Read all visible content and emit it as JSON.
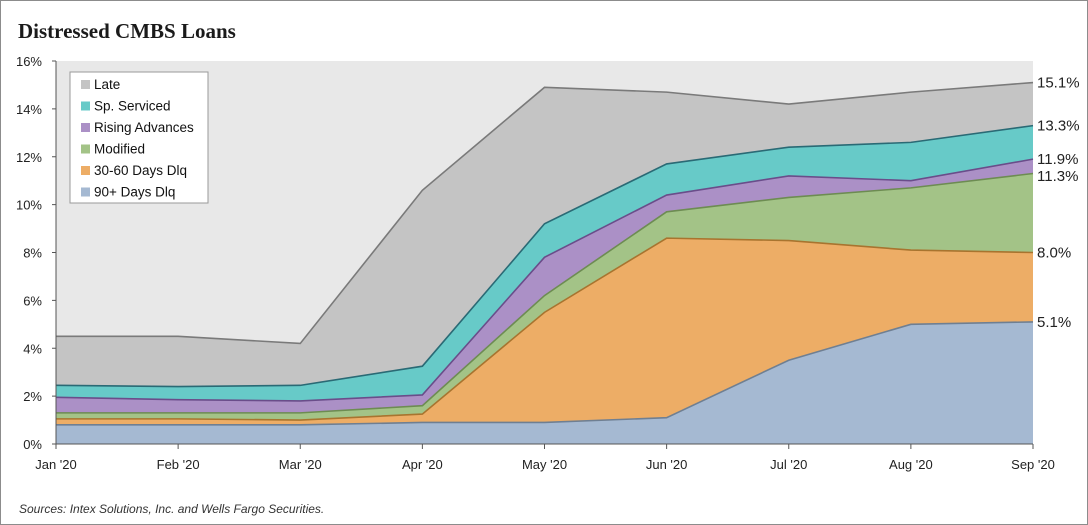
{
  "chart_data": {
    "type": "area",
    "title": "Distressed CMBS Loans",
    "source": "Sources: Intex Solutions, Inc. and Wells Fargo Securities.",
    "categories": [
      "Jan '20",
      "Feb '20",
      "Mar '20",
      "Apr '20",
      "May '20",
      "Jun '20",
      "Jul '20",
      "Aug '20",
      "Sep '20"
    ],
    "ylim": [
      0,
      16
    ],
    "yticks": [
      "0%",
      "2%",
      "4%",
      "6%",
      "8%",
      "10%",
      "12%",
      "14%",
      "16%"
    ],
    "stacked_cumulative": true,
    "legend_position": "top-left",
    "background": "#e8e8e8",
    "series": [
      {
        "name": "90+ Days Dlq",
        "color": "#a5b9d2",
        "line": "#6f7f92",
        "values": [
          0.8,
          0.8,
          0.8,
          0.9,
          0.9,
          1.1,
          3.5,
          5.0,
          5.1
        ]
      },
      {
        "name": "30-60 Days Dlq",
        "color": "#edad66",
        "line": "#a8742f",
        "values": [
          1.05,
          1.05,
          1.0,
          1.25,
          5.5,
          8.6,
          8.5,
          8.1,
          8.0
        ]
      },
      {
        "name": "Modified",
        "color": "#a3c387",
        "line": "#6d8c52",
        "values": [
          1.3,
          1.3,
          1.3,
          1.6,
          6.2,
          9.7,
          10.3,
          10.7,
          11.3
        ]
      },
      {
        "name": "Rising Advances",
        "color": "#ab90c6",
        "line": "#6a4d8a",
        "values": [
          1.95,
          1.85,
          1.8,
          2.05,
          7.8,
          10.4,
          11.2,
          11.0,
          11.9
        ]
      },
      {
        "name": "Sp. Serviced",
        "color": "#67cac8",
        "line": "#2a6a75",
        "values": [
          2.45,
          2.4,
          2.45,
          3.25,
          9.2,
          11.7,
          12.4,
          12.6,
          13.3
        ]
      },
      {
        "name": "Late",
        "color": "#c4c4c4",
        "line": "#7a7a7a",
        "values": [
          4.5,
          4.5,
          4.2,
          10.6,
          14.9,
          14.7,
          14.2,
          14.7,
          15.1
        ]
      }
    ],
    "end_labels": [
      "15.1%",
      "13.3%",
      "11.9%",
      "11.3%",
      "8.0%",
      "5.1%"
    ],
    "legend_order": [
      "Late",
      "Sp. Serviced",
      "Rising Advances",
      "Modified",
      "30-60 Days Dlq",
      "90+ Days Dlq"
    ]
  }
}
